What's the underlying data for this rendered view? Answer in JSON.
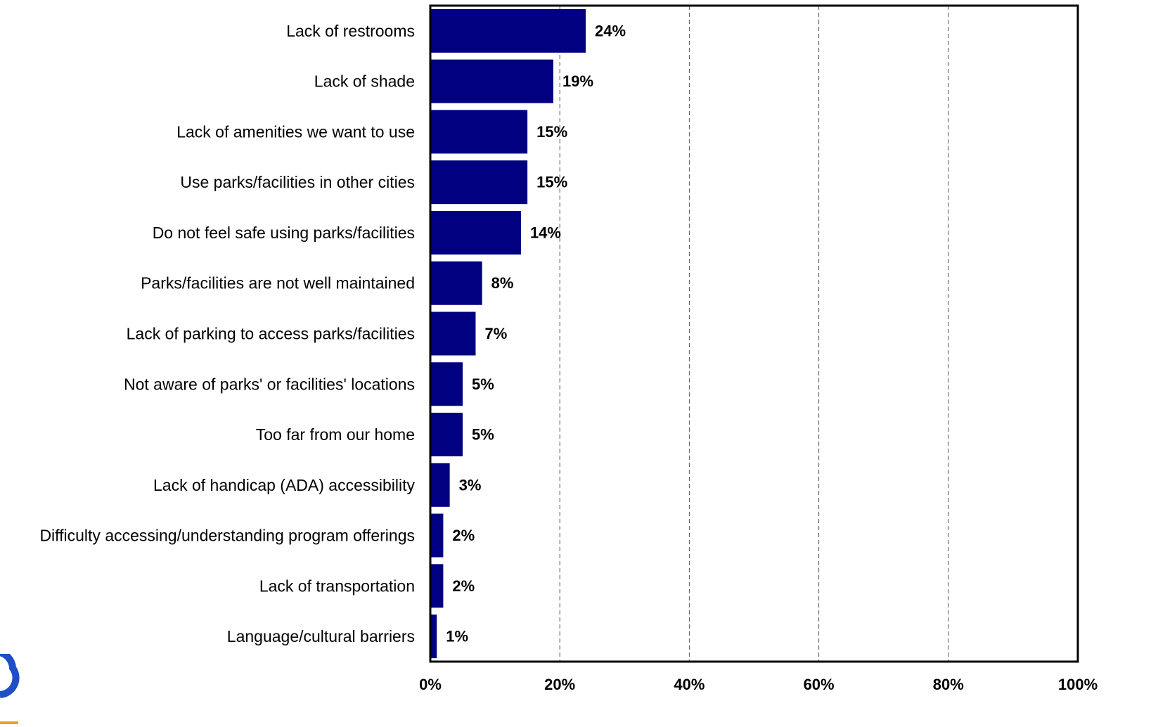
{
  "chart_data": {
    "type": "bar",
    "orientation": "horizontal",
    "categories": [
      "Lack of restrooms",
      "Lack of shade",
      "Lack of amenities we want to use",
      "Use parks/facilities in other cities",
      "Do not feel safe using parks/facilities",
      "Parks/facilities are not well maintained",
      "Lack of parking to access parks/facilities",
      "Not aware of parks' or facilities' locations",
      "Too far from our home",
      "Lack of handicap (ADA) accessibility",
      "Difficulty accessing/understanding program offerings",
      "Lack of transportation",
      "Language/cultural barriers"
    ],
    "values": [
      24,
      19,
      15,
      15,
      14,
      8,
      7,
      5,
      5,
      3,
      2,
      2,
      1
    ],
    "value_labels": [
      "24%",
      "19%",
      "15%",
      "15%",
      "14%",
      "8%",
      "7%",
      "5%",
      "5%",
      "3%",
      "2%",
      "2%",
      "1%"
    ],
    "xlim": [
      0,
      100
    ],
    "x_ticks": [
      0,
      20,
      40,
      60,
      80,
      100
    ],
    "x_tick_labels": [
      "0%",
      "20%",
      "40%",
      "60%",
      "80%",
      "100%"
    ],
    "grid": "vertical dashed",
    "bar_color": "#000080",
    "title": "",
    "xlabel": "",
    "ylabel": ""
  },
  "logo": {
    "colors": {
      "arc": "#1f4fc4",
      "text": "#f0a020"
    }
  }
}
